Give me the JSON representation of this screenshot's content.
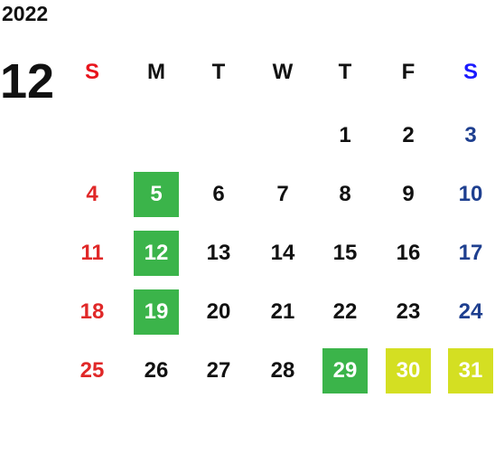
{
  "calendar": {
    "year": "2022",
    "month": "12",
    "weekdays": [
      {
        "label": "S",
        "header_color": "#e8141c",
        "day_color": "#e02828"
      },
      {
        "label": "M",
        "header_color": "#111111",
        "day_color": "#111111"
      },
      {
        "label": "T",
        "header_color": "#111111",
        "day_color": "#111111"
      },
      {
        "label": "W",
        "header_color": "#111111",
        "day_color": "#111111"
      },
      {
        "label": "T",
        "header_color": "#111111",
        "day_color": "#111111"
      },
      {
        "label": "F",
        "header_color": "#111111",
        "day_color": "#111111"
      },
      {
        "label": "S",
        "header_color": "#1a1aff",
        "day_color": "#1e3f8f"
      }
    ],
    "weeks": [
      [
        null,
        null,
        null,
        null,
        {
          "day": "1"
        },
        {
          "day": "2"
        },
        {
          "day": "3"
        }
      ],
      [
        {
          "day": "4"
        },
        {
          "day": "5",
          "background": "#3bb44a",
          "color": "#ffffff"
        },
        {
          "day": "6"
        },
        {
          "day": "7"
        },
        {
          "day": "8"
        },
        {
          "day": "9"
        },
        {
          "day": "10"
        }
      ],
      [
        {
          "day": "11"
        },
        {
          "day": "12",
          "background": "#3bb44a",
          "color": "#ffffff"
        },
        {
          "day": "13"
        },
        {
          "day": "14"
        },
        {
          "day": "15"
        },
        {
          "day": "16"
        },
        {
          "day": "17"
        }
      ],
      [
        {
          "day": "18"
        },
        {
          "day": "19",
          "background": "#3bb44a",
          "color": "#ffffff"
        },
        {
          "day": "20"
        },
        {
          "day": "21"
        },
        {
          "day": "22"
        },
        {
          "day": "23"
        },
        {
          "day": "24"
        }
      ],
      [
        {
          "day": "25"
        },
        {
          "day": "26"
        },
        {
          "day": "27"
        },
        {
          "day": "28"
        },
        {
          "day": "29",
          "background": "#3bb44a",
          "color": "#ffffff"
        },
        {
          "day": "30",
          "background": "#d4df22",
          "color": "#ffffff"
        },
        {
          "day": "31",
          "background": "#d4df22",
          "color": "#ffffff"
        }
      ]
    ]
  }
}
